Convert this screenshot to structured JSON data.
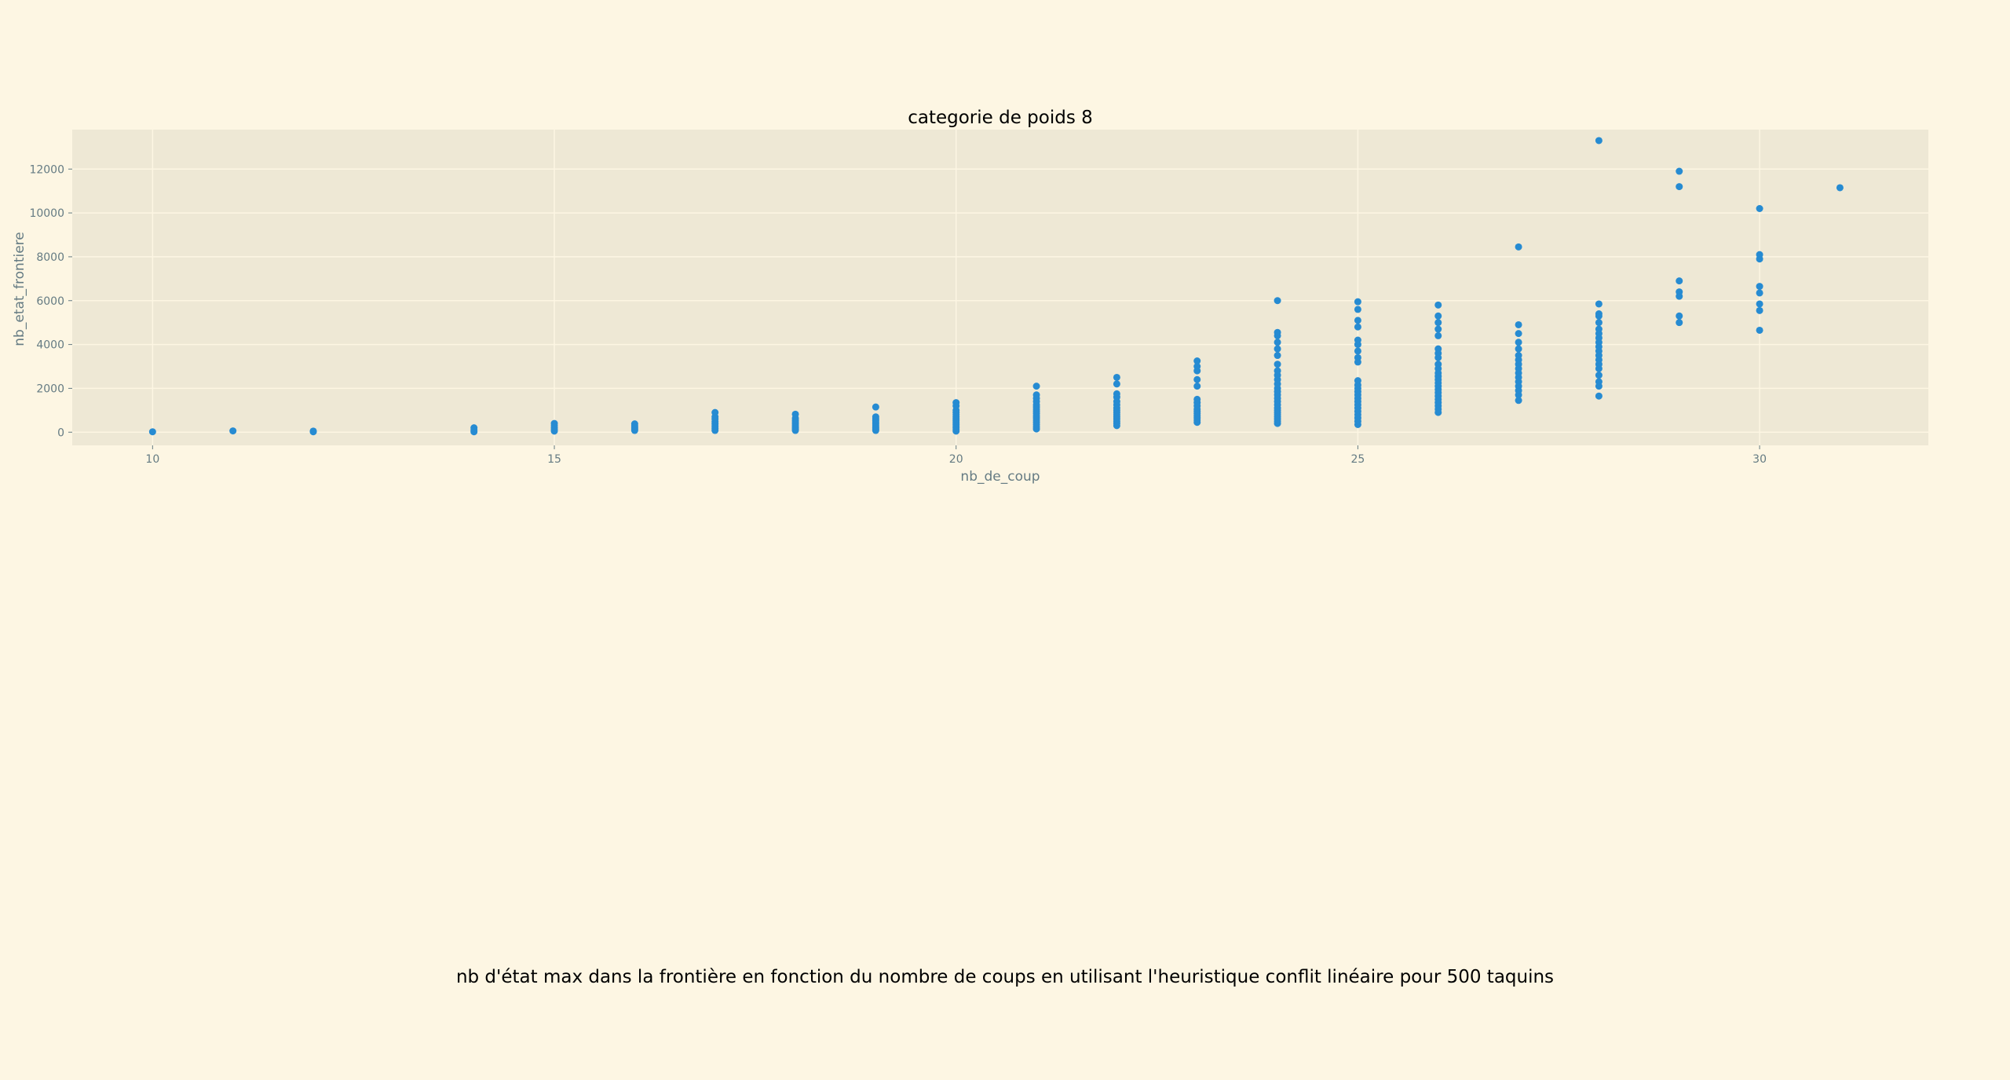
{
  "figure_caption": "nb d'état max dans la frontière en fonction du nombre de coups en utilisant l'heuristique conflit linéaire pour 500 taquins",
  "colors": {
    "background": "#fdf6e3",
    "plot_background": "#eee8d5",
    "grid": "#fdf6e3",
    "point": "#268bd2",
    "axis_text": "#657b83"
  },
  "chart_data": {
    "type": "scatter",
    "title": "categorie de poids 8",
    "xlabel": "nb_de_coup",
    "ylabel": "nb_etat_frontiere",
    "xlim": [
      9,
      32.1
    ],
    "ylim": [
      -600,
      13800
    ],
    "xticks": [
      10,
      15,
      20,
      25,
      30
    ],
    "yticks": [
      0,
      2000,
      4000,
      6000,
      8000,
      10000,
      12000
    ],
    "grid": true,
    "legend": "none",
    "points": [
      [
        10,
        20
      ],
      [
        11,
        60
      ],
      [
        12,
        20
      ],
      [
        12,
        50
      ],
      [
        14,
        20
      ],
      [
        14,
        100
      ],
      [
        14,
        200
      ],
      [
        15,
        50
      ],
      [
        15,
        120
      ],
      [
        15,
        200
      ],
      [
        15,
        300
      ],
      [
        15,
        400
      ],
      [
        16,
        80
      ],
      [
        16,
        150
      ],
      [
        16,
        220
      ],
      [
        16,
        300
      ],
      [
        16,
        380
      ],
      [
        17,
        80
      ],
      [
        17,
        180
      ],
      [
        17,
        280
      ],
      [
        17,
        380
      ],
      [
        17,
        480
      ],
      [
        17,
        600
      ],
      [
        17,
        700
      ],
      [
        17,
        900
      ],
      [
        18,
        80
      ],
      [
        18,
        150
      ],
      [
        18,
        220
      ],
      [
        18,
        300
      ],
      [
        18,
        380
      ],
      [
        18,
        460
      ],
      [
        18,
        540
      ],
      [
        18,
        640
      ],
      [
        18,
        820
      ],
      [
        19,
        80
      ],
      [
        19,
        150
      ],
      [
        19,
        220
      ],
      [
        19,
        300
      ],
      [
        19,
        380
      ],
      [
        19,
        460
      ],
      [
        19,
        540
      ],
      [
        19,
        620
      ],
      [
        19,
        700
      ],
      [
        19,
        1150
      ],
      [
        20,
        50
      ],
      [
        20,
        120
      ],
      [
        20,
        200
      ],
      [
        20,
        280
      ],
      [
        20,
        360
      ],
      [
        20,
        440
      ],
      [
        20,
        520
      ],
      [
        20,
        600
      ],
      [
        20,
        700
      ],
      [
        20,
        800
      ],
      [
        20,
        900
      ],
      [
        20,
        1000
      ],
      [
        20,
        1200
      ],
      [
        20,
        1350
      ],
      [
        21,
        150
      ],
      [
        21,
        250
      ],
      [
        21,
        350
      ],
      [
        21,
        450
      ],
      [
        21,
        550
      ],
      [
        21,
        650
      ],
      [
        21,
        750
      ],
      [
        21,
        850
      ],
      [
        21,
        950
      ],
      [
        21,
        1050
      ],
      [
        21,
        1150
      ],
      [
        21,
        1250
      ],
      [
        21,
        1400
      ],
      [
        21,
        1550
      ],
      [
        21,
        1700
      ],
      [
        21,
        2100
      ],
      [
        22,
        300
      ],
      [
        22,
        400
      ],
      [
        22,
        500
      ],
      [
        22,
        600
      ],
      [
        22,
        700
      ],
      [
        22,
        800
      ],
      [
        22,
        900
      ],
      [
        22,
        1000
      ],
      [
        22,
        1100
      ],
      [
        22,
        1250
      ],
      [
        22,
        1400
      ],
      [
        22,
        1600
      ],
      [
        22,
        1750
      ],
      [
        22,
        2200
      ],
      [
        22,
        2500
      ],
      [
        23,
        450
      ],
      [
        23,
        550
      ],
      [
        23,
        650
      ],
      [
        23,
        750
      ],
      [
        23,
        850
      ],
      [
        23,
        950
      ],
      [
        23,
        1050
      ],
      [
        23,
        1200
      ],
      [
        23,
        1350
      ],
      [
        23,
        1500
      ],
      [
        23,
        2100
      ],
      [
        23,
        2400
      ],
      [
        23,
        2800
      ],
      [
        23,
        3000
      ],
      [
        23,
        3250
      ],
      [
        24,
        400
      ],
      [
        24,
        500
      ],
      [
        24,
        600
      ],
      [
        24,
        700
      ],
      [
        24,
        800
      ],
      [
        24,
        900
      ],
      [
        24,
        1000
      ],
      [
        24,
        1100
      ],
      [
        24,
        1250
      ],
      [
        24,
        1400
      ],
      [
        24,
        1550
      ],
      [
        24,
        1700
      ],
      [
        24,
        1850
      ],
      [
        24,
        2000
      ],
      [
        24,
        2200
      ],
      [
        24,
        2400
      ],
      [
        24,
        2600
      ],
      [
        24,
        2800
      ],
      [
        24,
        3100
      ],
      [
        24,
        3500
      ],
      [
        24,
        3800
      ],
      [
        24,
        4100
      ],
      [
        24,
        4400
      ],
      [
        24,
        4550
      ],
      [
        24,
        6000
      ],
      [
        25,
        350
      ],
      [
        25,
        500
      ],
      [
        25,
        650
      ],
      [
        25,
        800
      ],
      [
        25,
        950
      ],
      [
        25,
        1100
      ],
      [
        25,
        1250
      ],
      [
        25,
        1400
      ],
      [
        25,
        1550
      ],
      [
        25,
        1700
      ],
      [
        25,
        1850
      ],
      [
        25,
        2000
      ],
      [
        25,
        2150
      ],
      [
        25,
        2350
      ],
      [
        25,
        3200
      ],
      [
        25,
        3400
      ],
      [
        25,
        3700
      ],
      [
        25,
        4000
      ],
      [
        25,
        4200
      ],
      [
        25,
        4800
      ],
      [
        25,
        5100
      ],
      [
        25,
        5600
      ],
      [
        25,
        5950
      ],
      [
        26,
        900
      ],
      [
        26,
        1050
      ],
      [
        26,
        1200
      ],
      [
        26,
        1350
      ],
      [
        26,
        1500
      ],
      [
        26,
        1650
      ],
      [
        26,
        1800
      ],
      [
        26,
        1950
      ],
      [
        26,
        2100
      ],
      [
        26,
        2250
      ],
      [
        26,
        2400
      ],
      [
        26,
        2550
      ],
      [
        26,
        2700
      ],
      [
        26,
        2900
      ],
      [
        26,
        3100
      ],
      [
        26,
        3400
      ],
      [
        26,
        3600
      ],
      [
        26,
        3800
      ],
      [
        26,
        4400
      ],
      [
        26,
        4700
      ],
      [
        26,
        5000
      ],
      [
        26,
        5300
      ],
      [
        26,
        5800
      ],
      [
        27,
        1450
      ],
      [
        27,
        1700
      ],
      [
        27,
        1900
      ],
      [
        27,
        2100
      ],
      [
        27,
        2300
      ],
      [
        27,
        2500
      ],
      [
        27,
        2700
      ],
      [
        27,
        2900
      ],
      [
        27,
        3100
      ],
      [
        27,
        3300
      ],
      [
        27,
        3500
      ],
      [
        27,
        3800
      ],
      [
        27,
        4100
      ],
      [
        27,
        4500
      ],
      [
        27,
        4900
      ],
      [
        27,
        8450
      ],
      [
        28,
        1650
      ],
      [
        28,
        2100
      ],
      [
        28,
        2300
      ],
      [
        28,
        2600
      ],
      [
        28,
        2900
      ],
      [
        28,
        3100
      ],
      [
        28,
        3300
      ],
      [
        28,
        3500
      ],
      [
        28,
        3700
      ],
      [
        28,
        3900
      ],
      [
        28,
        4100
      ],
      [
        28,
        4300
      ],
      [
        28,
        4500
      ],
      [
        28,
        4700
      ],
      [
        28,
        5000
      ],
      [
        28,
        5300
      ],
      [
        28,
        5400
      ],
      [
        28,
        5850
      ],
      [
        28,
        13300
      ],
      [
        29,
        5000
      ],
      [
        29,
        5300
      ],
      [
        29,
        6200
      ],
      [
        29,
        6400
      ],
      [
        29,
        6900
      ],
      [
        29,
        11200
      ],
      [
        29,
        11900
      ],
      [
        30,
        4650
      ],
      [
        30,
        5550
      ],
      [
        30,
        5850
      ],
      [
        30,
        6350
      ],
      [
        30,
        6650
      ],
      [
        30,
        7900
      ],
      [
        30,
        8100
      ],
      [
        30,
        10200
      ],
      [
        31,
        11150
      ]
    ]
  }
}
